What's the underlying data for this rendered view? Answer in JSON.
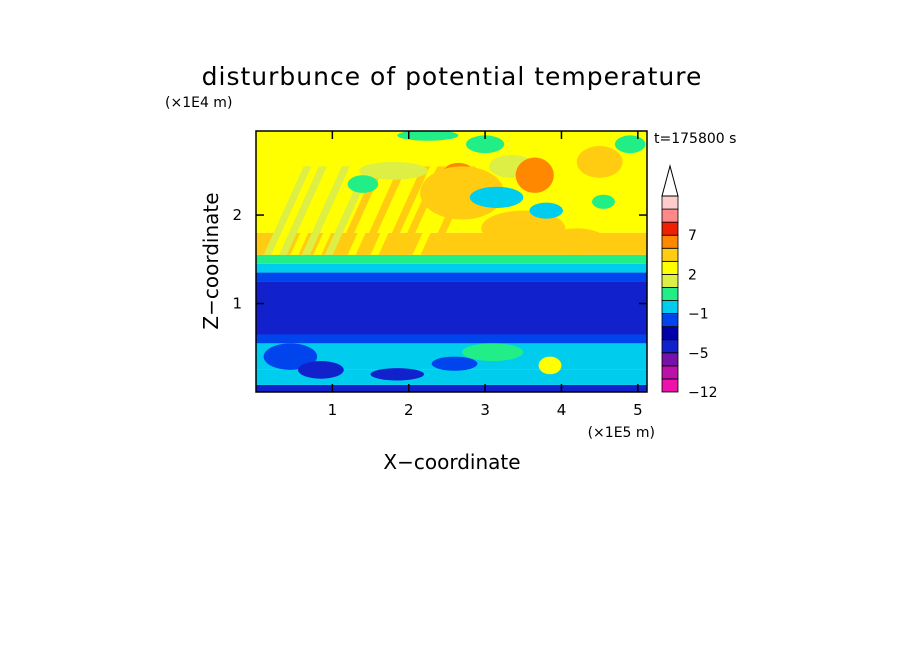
{
  "chart_data": {
    "type": "heatmap",
    "title": "disturbunce of potential temperature",
    "time_label": "t=175800 s",
    "xlabel": "X−coordinate",
    "ylabel": "Z−coordinate",
    "x_unit": "(×1E5 m)",
    "y_unit": "(×1E4 m)",
    "xlim": [
      0,
      5.12
    ],
    "ylim": [
      0,
      2.95
    ],
    "x_ticks": [
      {
        "value": 1,
        "label": "1"
      },
      {
        "value": 2,
        "label": "2"
      },
      {
        "value": 3,
        "label": "3"
      },
      {
        "value": 4,
        "label": "4"
      },
      {
        "value": 5,
        "label": "5"
      }
    ],
    "y_ticks": [
      {
        "value": 1,
        "label": "1"
      },
      {
        "value": 2,
        "label": "2"
      }
    ],
    "colorbar": {
      "levels": [
        -12,
        -10,
        -8,
        -5,
        -4,
        -3,
        -1,
        0,
        1,
        2,
        3,
        5,
        7,
        8,
        10
      ],
      "tick_labels": [
        {
          "value": 7,
          "label": "7"
        },
        {
          "value": 2,
          "label": "2"
        },
        {
          "value": -1,
          "label": "−1"
        },
        {
          "value": -5,
          "label": "−5"
        },
        {
          "value": -12,
          "label": "−12"
        }
      ],
      "colors": [
        "#ee11aa",
        "#bb11aa",
        "#7711aa",
        "#1122cc",
        "#0000aa",
        "#0044ee",
        "#00ccee",
        "#22ee88",
        "#ddee44",
        "#ffff00",
        "#ffcc11",
        "#ff8800",
        "#ee2200",
        "#ff8888",
        "#ffcccc"
      ],
      "extend_max": true
    },
    "bands": [
      {
        "z": [
          0.0,
          0.08
        ],
        "value": -5
      },
      {
        "z": [
          0.08,
          0.25
        ],
        "value": -1
      },
      {
        "z": [
          0.25,
          0.55
        ],
        "value": -1
      },
      {
        "z": [
          0.55,
          0.65
        ],
        "value": -3
      },
      {
        "z": [
          0.65,
          1.25
        ],
        "value": -5
      },
      {
        "z": [
          1.25,
          1.35
        ],
        "value": -3
      },
      {
        "z": [
          1.35,
          1.45
        ],
        "value": -1
      },
      {
        "z": [
          1.45,
          1.55
        ],
        "value": 0
      },
      {
        "z": [
          1.55,
          1.8
        ],
        "value": 3
      },
      {
        "z": [
          1.8,
          2.95
        ],
        "value": 2
      }
    ],
    "features": [
      {
        "x": 2.65,
        "z": 2.45,
        "rx": 0.22,
        "rz": 0.14,
        "value": 5
      },
      {
        "x": 2.7,
        "z": 2.25,
        "rx": 0.55,
        "rz": 0.3,
        "value": 3
      },
      {
        "x": 3.15,
        "z": 2.2,
        "rx": 0.35,
        "rz": 0.12,
        "value": -1
      },
      {
        "x": 3.35,
        "z": 2.55,
        "rx": 0.3,
        "rz": 0.13,
        "value": 1
      },
      {
        "x": 3.0,
        "z": 2.8,
        "rx": 0.25,
        "rz": 0.1,
        "value": 0
      },
      {
        "x": 3.65,
        "z": 2.45,
        "rx": 0.25,
        "rz": 0.2,
        "value": 5
      },
      {
        "x": 3.5,
        "z": 1.85,
        "rx": 0.55,
        "rz": 0.2,
        "value": 3
      },
      {
        "x": 3.8,
        "z": 2.05,
        "rx": 0.22,
        "rz": 0.09,
        "value": -1
      },
      {
        "x": 4.2,
        "z": 1.7,
        "rx": 0.4,
        "rz": 0.15,
        "value": 3
      },
      {
        "x": 4.5,
        "z": 2.6,
        "rx": 0.3,
        "rz": 0.18,
        "value": 3
      },
      {
        "x": 4.9,
        "z": 2.8,
        "rx": 0.2,
        "rz": 0.1,
        "value": 0
      },
      {
        "x": 4.55,
        "z": 2.15,
        "rx": 0.15,
        "rz": 0.08,
        "value": 0
      },
      {
        "x": 1.8,
        "z": 2.5,
        "rx": 0.45,
        "rz": 0.1,
        "value": 1
      },
      {
        "x": 1.4,
        "z": 2.35,
        "rx": 0.2,
        "rz": 0.1,
        "value": 0
      },
      {
        "x": 2.25,
        "z": 2.9,
        "rx": 0.4,
        "rz": 0.06,
        "value": 0
      },
      {
        "x": 0.45,
        "z": 0.4,
        "rx": 0.35,
        "rz": 0.15,
        "value": -3
      },
      {
        "x": 0.85,
        "z": 0.25,
        "rx": 0.3,
        "rz": 0.1,
        "value": -5
      },
      {
        "x": 1.85,
        "z": 0.2,
        "rx": 0.35,
        "rz": 0.07,
        "value": -5
      },
      {
        "x": 2.6,
        "z": 0.32,
        "rx": 0.3,
        "rz": 0.08,
        "value": -3
      },
      {
        "x": 3.85,
        "z": 0.3,
        "rx": 0.15,
        "rz": 0.1,
        "value": 2
      },
      {
        "x": 3.1,
        "z": 0.45,
        "rx": 0.4,
        "rz": 0.1,
        "value": 0
      }
    ],
    "streaks": [
      {
        "x": 0.1,
        "value": 1
      },
      {
        "x": 0.2,
        "value": 2
      },
      {
        "x": 0.3,
        "value": 1
      },
      {
        "x": 0.45,
        "value": 2
      },
      {
        "x": 0.6,
        "value": 1
      },
      {
        "x": 0.75,
        "value": 2
      },
      {
        "x": 0.9,
        "value": 1
      },
      {
        "x": 1.05,
        "value": 3
      },
      {
        "x": 1.2,
        "value": 2
      },
      {
        "x": 1.35,
        "value": 3
      },
      {
        "x": 1.5,
        "value": 2
      },
      {
        "x": 1.65,
        "value": 3
      },
      {
        "x": 1.85,
        "value": 3
      },
      {
        "x": 2.05,
        "value": 2
      },
      {
        "x": 2.25,
        "value": 3
      }
    ]
  }
}
